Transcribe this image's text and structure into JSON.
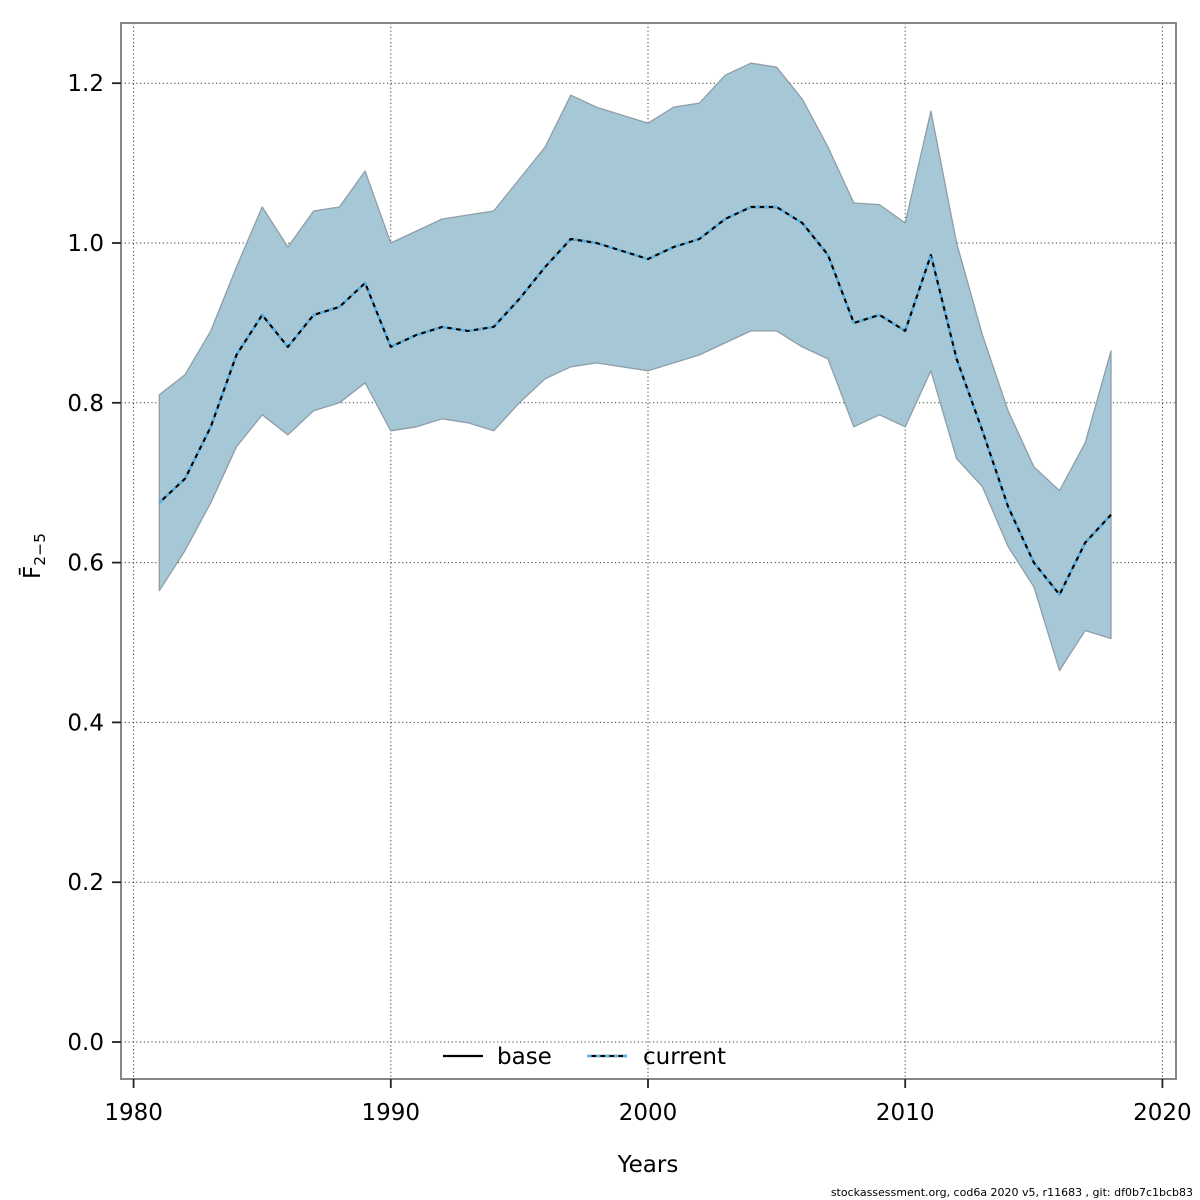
{
  "figure": {
    "footer": "stockassessment.org, cod6a 2020 v5, r11683 , git: df0b7c1bcb83"
  },
  "axes": {
    "x_label": "Years",
    "y_label_main": "F̄",
    "y_label_sub": "2−5",
    "x_ticks": [
      1980,
      1990,
      2000,
      2010,
      2020
    ],
    "y_ticks": [
      "0.0",
      "0.2",
      "0.4",
      "0.6",
      "0.8",
      "1.0",
      "1.2"
    ]
  },
  "legend": {
    "base_label": "base",
    "current_label": "current"
  },
  "colors": {
    "band_fill": "#A6C7D6",
    "band_edge": "#8E9EA8",
    "base_line": "#000000",
    "current_line": "#58B5E8",
    "grid": "#1A1A1A",
    "frame": "#878787",
    "tick": "#222222"
  },
  "chart_data": {
    "type": "line",
    "title": "",
    "xlabel": "Years",
    "ylabel": "Fbar 2-5",
    "xlim": [
      1978.9,
      2020.5
    ],
    "ylim": [
      -0.05,
      1.27
    ],
    "grid": true,
    "legend_position": "bottom-center-inside",
    "x": [
      1981,
      1982,
      1983,
      1984,
      1985,
      1986,
      1987,
      1988,
      1989,
      1990,
      1991,
      1992,
      1993,
      1994,
      1995,
      1996,
      1997,
      1998,
      1999,
      2000,
      2001,
      2002,
      2003,
      2004,
      2005,
      2006,
      2007,
      2008,
      2009,
      2010,
      2011,
      2012,
      2013,
      2014,
      2015,
      2016,
      2017,
      2018
    ],
    "series": [
      {
        "name": "base",
        "style": "solid-black",
        "values": [
          0.675,
          0.705,
          0.77,
          0.86,
          0.91,
          0.87,
          0.91,
          0.92,
          0.95,
          0.87,
          0.885,
          0.895,
          0.89,
          0.895,
          0.93,
          0.97,
          1.005,
          1.0,
          0.99,
          0.98,
          0.995,
          1.005,
          1.03,
          1.045,
          1.045,
          1.025,
          0.985,
          0.9,
          0.91,
          0.89,
          0.985,
          0.855,
          0.765,
          0.67,
          0.6,
          0.56,
          0.625,
          0.66
        ]
      },
      {
        "name": "current",
        "style": "dotted-blue",
        "values": [
          0.675,
          0.705,
          0.77,
          0.86,
          0.91,
          0.87,
          0.91,
          0.92,
          0.95,
          0.87,
          0.885,
          0.895,
          0.89,
          0.895,
          0.93,
          0.97,
          1.005,
          1.0,
          0.99,
          0.98,
          0.995,
          1.005,
          1.03,
          1.045,
          1.045,
          1.025,
          0.985,
          0.9,
          0.91,
          0.89,
          0.985,
          0.855,
          0.765,
          0.67,
          0.6,
          0.56,
          0.625,
          0.66
        ]
      }
    ],
    "band": {
      "name": "current-confidence-interval",
      "lower": [
        0.565,
        0.615,
        0.675,
        0.745,
        0.785,
        0.76,
        0.79,
        0.8,
        0.825,
        0.765,
        0.77,
        0.78,
        0.775,
        0.765,
        0.8,
        0.83,
        0.845,
        0.85,
        0.845,
        0.84,
        0.85,
        0.86,
        0.875,
        0.89,
        0.89,
        0.87,
        0.855,
        0.77,
        0.785,
        0.77,
        0.84,
        0.73,
        0.695,
        0.62,
        0.57,
        0.465,
        0.515,
        0.505
      ],
      "upper": [
        0.81,
        0.835,
        0.89,
        0.97,
        1.045,
        0.995,
        1.04,
        1.045,
        1.09,
        1.0,
        1.015,
        1.03,
        1.035,
        1.04,
        1.08,
        1.12,
        1.185,
        1.17,
        1.16,
        1.15,
        1.17,
        1.175,
        1.21,
        1.225,
        1.22,
        1.18,
        1.12,
        1.05,
        1.048,
        1.025,
        1.165,
        1.0,
        0.885,
        0.79,
        0.72,
        0.69,
        0.75,
        0.865
      ]
    }
  }
}
